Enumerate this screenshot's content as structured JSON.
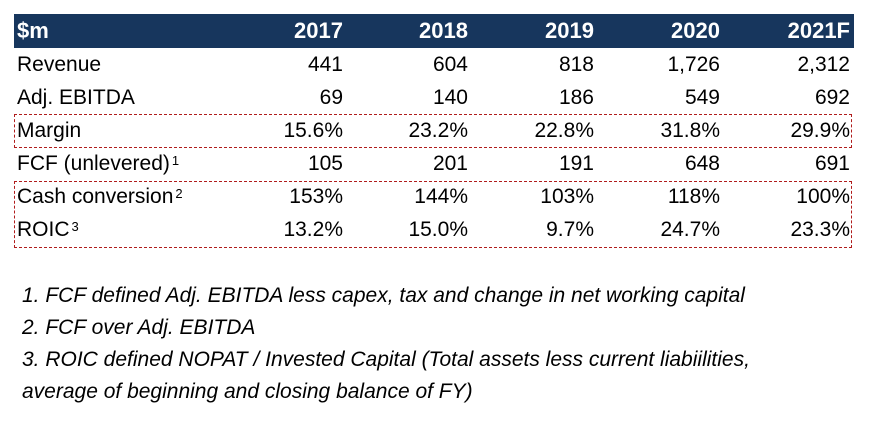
{
  "table": {
    "header": [
      "$m",
      "2017",
      "2018",
      "2019",
      "2020",
      "2021F"
    ],
    "rows": [
      {
        "label": "Revenue",
        "sup": "",
        "values": [
          "441",
          "604",
          "818",
          "1,726",
          "2,312"
        ]
      },
      {
        "label": "Adj. EBITDA",
        "sup": "",
        "values": [
          "69",
          "140",
          "186",
          "549",
          "692"
        ]
      },
      {
        "label": "Margin",
        "sup": "",
        "values": [
          "15.6%",
          "23.2%",
          "22.8%",
          "31.8%",
          "29.9%"
        ]
      },
      {
        "label": "FCF (unlevered)",
        "sup": "1",
        "values": [
          "105",
          "201",
          "191",
          "648",
          "691"
        ]
      },
      {
        "label": "Cash conversion",
        "sup": "2",
        "values": [
          "153%",
          "144%",
          "103%",
          "118%",
          "100%"
        ]
      },
      {
        "label": "ROIC",
        "sup": "3",
        "values": [
          "13.2%",
          "15.0%",
          "9.7%",
          "24.7%",
          "23.3%"
        ]
      }
    ]
  },
  "footnotes": [
    "1. FCF defined Adj. EBITDA less capex, tax and change in net working capital",
    "2. FCF over Adj. EBITDA",
    "3. ROIC defined NOPAT / Invested Capital (Total assets less current liabiilities,",
    "average of beginning and closing balance of FY)"
  ],
  "colors": {
    "header_bg": "#17365d",
    "header_text": "#ffffff",
    "highlight_border": "#b01c1c"
  }
}
